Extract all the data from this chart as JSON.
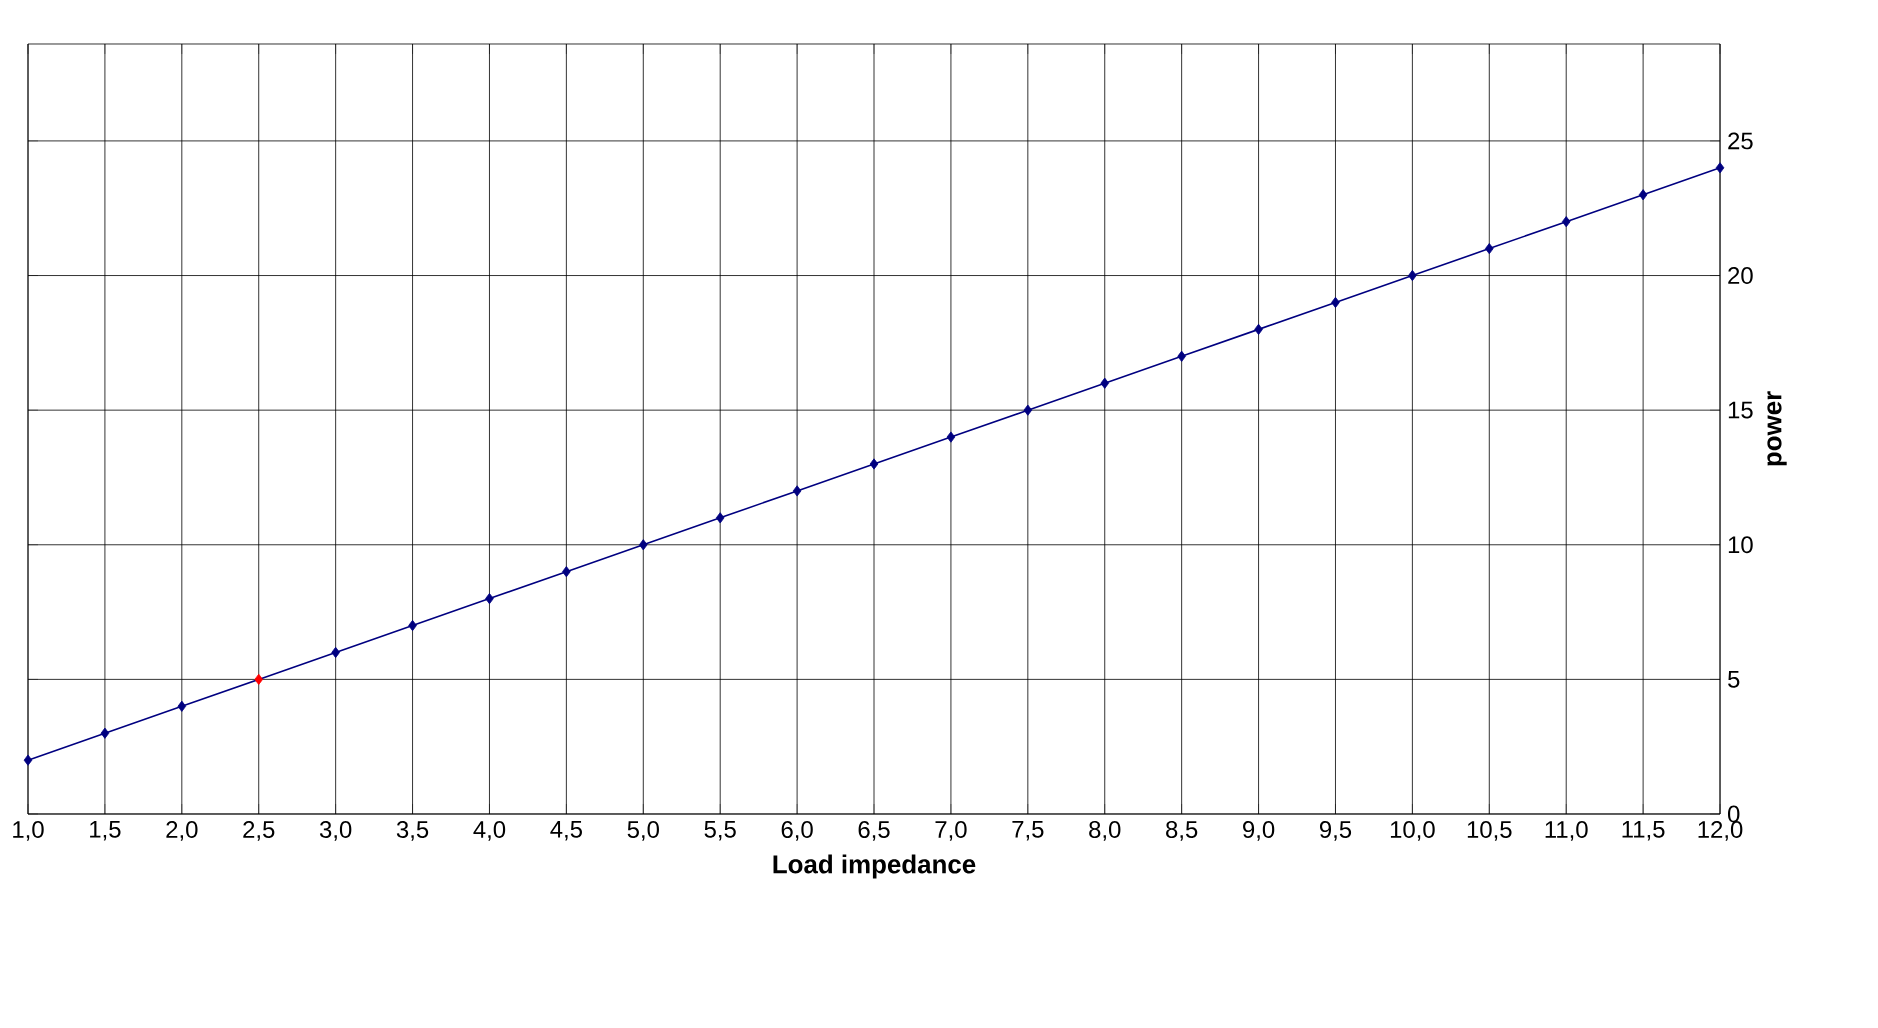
{
  "chart_data": {
    "type": "line",
    "xlabel": "Load impedance",
    "ylabel": "power",
    "series": [
      {
        "color": "#000080",
        "x": [
          1,
          1.5,
          2,
          2.5,
          3,
          3.5,
          4,
          4.5,
          5,
          5.5,
          6,
          6.5,
          7,
          7.5,
          8,
          8.5,
          9,
          9.5,
          10,
          10.5,
          11,
          11.5,
          12
        ],
        "values": [
          2,
          3,
          4,
          5,
          6,
          7,
          8,
          9,
          10,
          11,
          12,
          13,
          14,
          15,
          16,
          17,
          18,
          19,
          20,
          21,
          22,
          23,
          24
        ],
        "colors": [
          "#000080",
          "#000080",
          "#000080",
          "#ff0000",
          "#000080",
          "#000080",
          "#000080",
          "#000080",
          "#000080",
          "#000080",
          "#000080",
          "#000080",
          "#000080",
          "#000080",
          "#000080",
          "#000080",
          "#000080",
          "#000080",
          "#000080",
          "#000080",
          "#000080",
          "#000080",
          "#000080"
        ]
      }
    ],
    "xlim": [
      1,
      12
    ],
    "ylim": [
      0,
      28.6
    ],
    "xticks": [
      {
        "value": 1,
        "label": "1,0"
      },
      {
        "value": 1.5,
        "label": "1,5"
      },
      {
        "value": 2,
        "label": "2,0"
      },
      {
        "value": 2.5,
        "label": "2,5"
      },
      {
        "value": 3,
        "label": "3,0"
      },
      {
        "value": 3.5,
        "label": "3,5"
      },
      {
        "value": 4,
        "label": "4,0"
      },
      {
        "value": 4.5,
        "label": "4,5"
      },
      {
        "value": 5,
        "label": "5,0"
      },
      {
        "value": 5.5,
        "label": "5,5"
      },
      {
        "value": 6,
        "label": "6,0"
      },
      {
        "value": 6.5,
        "label": "6,5"
      },
      {
        "value": 7,
        "label": "7,0"
      },
      {
        "value": 7.5,
        "label": "7,5"
      },
      {
        "value": 8,
        "label": "8,0"
      },
      {
        "value": 8.5,
        "label": "8,5"
      },
      {
        "value": 9,
        "label": "9,0"
      },
      {
        "value": 9.5,
        "label": "9,5"
      },
      {
        "value": 10,
        "label": "10,0"
      },
      {
        "value": 10.5,
        "label": "10,5"
      },
      {
        "value": 11,
        "label": "11,0"
      },
      {
        "value": 11.5,
        "label": "11,5"
      },
      {
        "value": 12,
        "label": "12,0"
      }
    ],
    "yticks": [
      0,
      5,
      10,
      15,
      20,
      25
    ],
    "grid": true,
    "marker": "diamond",
    "line_style": "solid"
  }
}
